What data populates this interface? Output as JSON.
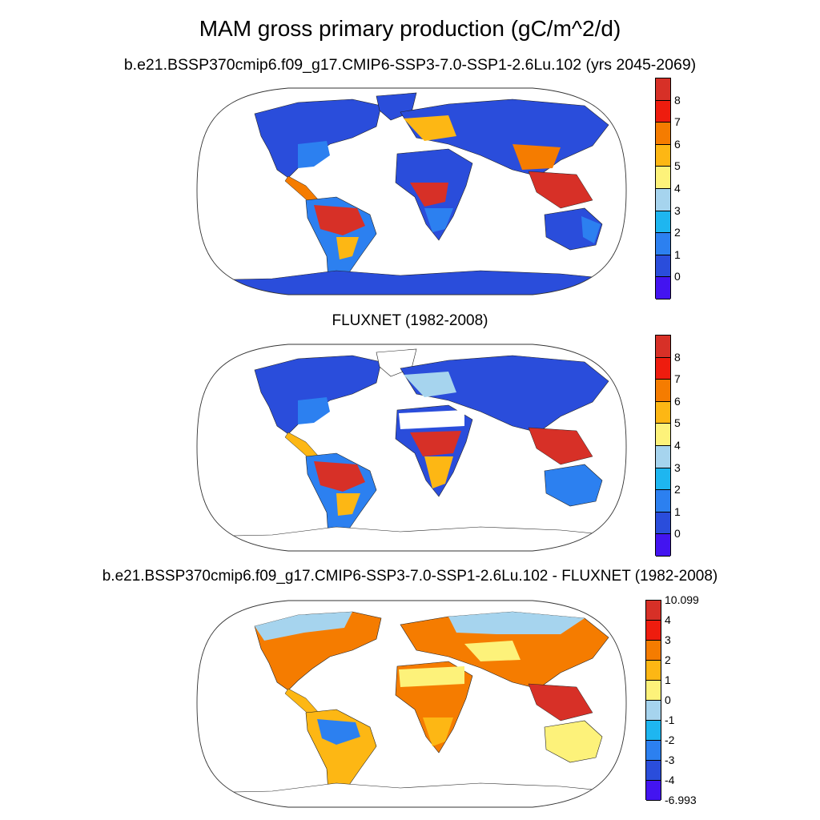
{
  "figure": {
    "title": "MAM gross primary production (gC/m^2/d)"
  },
  "panels": [
    {
      "id": "model",
      "title": "b.e21.BSSP370cmip6.f09_g17.CMIP6-SSP3-7.0-SSP1-2.6Lu.102 (yrs 2045-2069)",
      "projection": "robinson",
      "colorbar": {
        "labels": [
          "8",
          "7",
          "6",
          "5",
          "4",
          "3",
          "2",
          "1",
          "0"
        ],
        "colors": [
          "#d73027",
          "#ee1c0e",
          "#f57c00",
          "#fdb714",
          "#fdf27a",
          "#a6d4ee",
          "#1eb6f0",
          "#2c80f0",
          "#2a4ddb",
          "#4314f0"
        ]
      }
    },
    {
      "id": "obs",
      "title": "FLUXNET (1982-2008)",
      "projection": "robinson",
      "colorbar": {
        "labels": [
          "8",
          "7",
          "6",
          "5",
          "4",
          "3",
          "2",
          "1",
          "0"
        ],
        "colors": [
          "#d73027",
          "#ee1c0e",
          "#f57c00",
          "#fdb714",
          "#fdf27a",
          "#a6d4ee",
          "#1eb6f0",
          "#2c80f0",
          "#2a4ddb",
          "#4314f0"
        ]
      }
    },
    {
      "id": "diff",
      "title": "b.e21.BSSP370cmip6.f09_g17.CMIP6-SSP3-7.0-SSP1-2.6Lu.102 - FLUXNET (1982-2008)",
      "projection": "robinson",
      "colorbar": {
        "labels": [
          "10.099",
          "4",
          "3",
          "2",
          "1",
          "0",
          "-1",
          "-2",
          "-3",
          "-4",
          "-6.993"
        ],
        "colors": [
          "#d73027",
          "#ee1c0e",
          "#f57c00",
          "#fdb714",
          "#fdf27a",
          "#a6d4ee",
          "#1eb6f0",
          "#2c80f0",
          "#2a4ddb",
          "#4314f0"
        ]
      }
    }
  ]
}
